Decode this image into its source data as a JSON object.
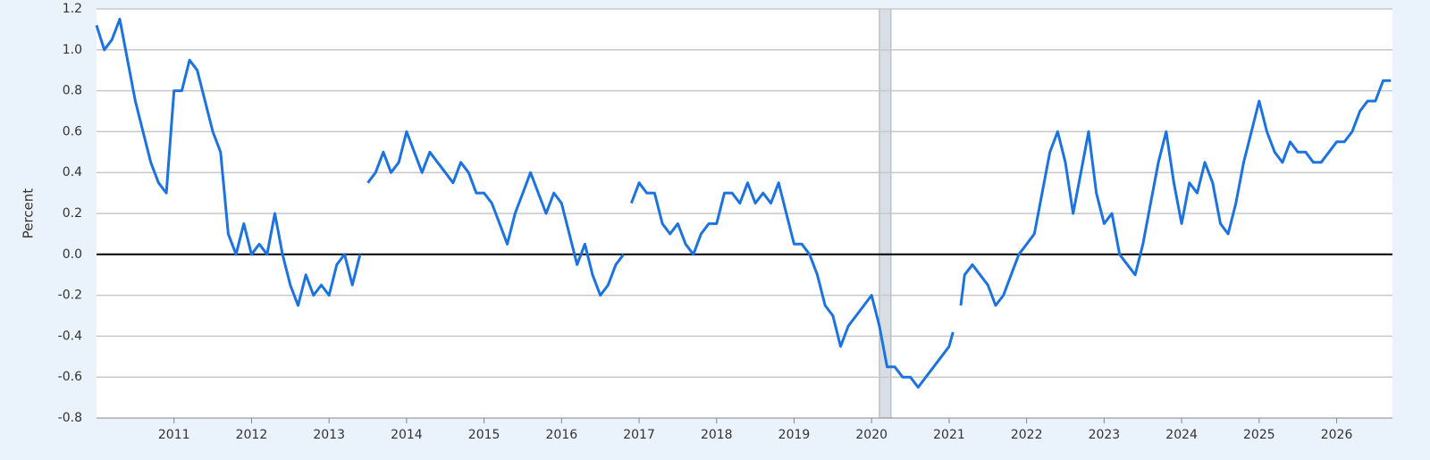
{
  "chart_data": {
    "type": "line",
    "y_label": "Percent",
    "x": [
      2010.0,
      2010.1,
      2010.2,
      2010.3,
      2010.4,
      2010.5,
      2010.6,
      2010.7,
      2010.8,
      2010.9,
      2011.0,
      2011.1,
      2011.2,
      2011.3,
      2011.4,
      2011.5,
      2011.6,
      2011.7,
      2011.8,
      2011.9,
      2012.0,
      2012.1,
      2012.2,
      2012.3,
      2012.4,
      2012.5,
      2012.6,
      2012.7,
      2012.8,
      2012.9,
      2013.0,
      2013.1,
      2013.2,
      2013.3,
      2013.4,
      2013.45,
      2013.5,
      2013.6,
      2013.7,
      2013.8,
      2013.9,
      2014.0,
      2014.1,
      2014.2,
      2014.3,
      2014.4,
      2014.5,
      2014.6,
      2014.7,
      2014.8,
      2014.9,
      2015.0,
      2015.1,
      2015.2,
      2015.3,
      2015.4,
      2015.5,
      2015.6,
      2015.7,
      2015.8,
      2015.9,
      2016.0,
      2016.1,
      2016.2,
      2016.3,
      2016.4,
      2016.5,
      2016.6,
      2016.7,
      2016.8,
      2016.85,
      2016.9,
      2017.0,
      2017.1,
      2017.2,
      2017.3,
      2017.4,
      2017.5,
      2017.6,
      2017.7,
      2017.8,
      2017.9,
      2018.0,
      2018.1,
      2018.2,
      2018.3,
      2018.4,
      2018.5,
      2018.6,
      2018.7,
      2018.8,
      2018.9,
      2019.0,
      2019.1,
      2019.2,
      2019.3,
      2019.4,
      2019.5,
      2019.6,
      2019.7,
      2019.8,
      2019.9,
      2020.0,
      2020.1,
      2020.2,
      2020.3,
      2020.4,
      2020.5,
      2020.6,
      2020.7,
      2020.8,
      2020.9,
      2021.0,
      2021.05,
      2021.1,
      2021.15,
      2021.2,
      2021.3,
      2021.4,
      2021.5,
      2021.6,
      2021.7,
      2021.8,
      2021.9,
      2022.0,
      2022.1,
      2022.2,
      2022.3,
      2022.4,
      2022.5,
      2022.6,
      2022.7,
      2022.8,
      2022.9,
      2023.0,
      2023.1,
      2023.2,
      2023.3,
      2023.4,
      2023.5,
      2023.6,
      2023.7,
      2023.8,
      2023.9,
      2024.0,
      2024.1,
      2024.2,
      2024.3,
      2024.4,
      2024.5,
      2024.6,
      2024.7,
      2024.8,
      2024.9,
      2025.0,
      2025.1,
      2025.2,
      2025.3,
      2025.4,
      2025.5,
      2025.6,
      2025.7,
      2025.8,
      2025.9,
      2026.0,
      2026.1,
      2026.2,
      2026.3,
      2026.4,
      2026.5,
      2026.6,
      2026.7
    ],
    "series": [
      {
        "color": "#1a73e0",
        "values": [
          1.12,
          1.0,
          1.05,
          1.15,
          0.95,
          0.75,
          0.6,
          0.45,
          0.35,
          0.3,
          0.8,
          0.8,
          0.95,
          0.9,
          0.75,
          0.6,
          0.5,
          0.1,
          0.0,
          0.15,
          0.0,
          0.05,
          0.0,
          0.2,
          0.0,
          -0.15,
          -0.25,
          -0.1,
          -0.2,
          -0.15,
          -0.2,
          -0.05,
          0.0,
          -0.15,
          0.0,
          null,
          0.35,
          0.4,
          0.5,
          0.4,
          0.45,
          0.6,
          0.5,
          0.4,
          0.5,
          0.45,
          0.4,
          0.35,
          0.45,
          0.4,
          0.3,
          0.3,
          0.25,
          0.15,
          0.05,
          0.2,
          0.3,
          0.4,
          0.3,
          0.2,
          0.3,
          0.25,
          0.1,
          -0.05,
          0.05,
          -0.1,
          -0.2,
          -0.15,
          -0.05,
          0.0,
          null,
          0.25,
          0.35,
          0.3,
          0.3,
          0.15,
          0.1,
          0.15,
          0.05,
          0.0,
          0.1,
          0.15,
          0.15,
          0.3,
          0.3,
          0.25,
          0.35,
          0.25,
          0.3,
          0.25,
          0.35,
          0.2,
          0.05,
          0.05,
          0.0,
          -0.1,
          -0.25,
          -0.3,
          -0.45,
          -0.35,
          -0.3,
          -0.25,
          -0.2,
          -0.35,
          -0.55,
          -0.55,
          -0.6,
          -0.6,
          -0.65,
          -0.6,
          -0.55,
          -0.5,
          -0.45,
          -0.38,
          null,
          -0.25,
          -0.1,
          -0.05,
          -0.1,
          -0.15,
          -0.25,
          -0.2,
          -0.1,
          0.0,
          0.05,
          0.1,
          0.3,
          0.5,
          0.6,
          0.45,
          0.2,
          0.4,
          0.6,
          0.3,
          0.15,
          0.2,
          0.0,
          -0.05,
          -0.1,
          0.05,
          0.25,
          0.45,
          0.6,
          0.35,
          0.15,
          0.35,
          0.3,
          0.45,
          0.35,
          0.15,
          0.1,
          0.25,
          0.45,
          0.6,
          0.75,
          0.6,
          0.5,
          0.45,
          0.55,
          0.5,
          0.5,
          0.45,
          0.45,
          0.5,
          0.55,
          0.55,
          0.6,
          0.7,
          0.75,
          0.75,
          0.85,
          0.85
        ]
      }
    ],
    "xlim": [
      2010.0,
      2026.72
    ],
    "xticks": [
      2011,
      2012,
      2013,
      2014,
      2015,
      2016,
      2017,
      2018,
      2019,
      2020,
      2021,
      2022,
      2023,
      2024,
      2025,
      2026
    ],
    "ylim": [
      -0.8,
      1.2
    ],
    "yticks": [
      -0.8,
      -0.6,
      -0.4,
      -0.2,
      {
        "value": 0,
        "label": "0.0"
      },
      0.2,
      0.4,
      0.6,
      0.8,
      {
        "value": 1,
        "label": "1.0"
      },
      1.2
    ],
    "recessions": [
      [
        2020.1,
        2020.25
      ]
    ],
    "grid": true,
    "zero_line": true
  }
}
